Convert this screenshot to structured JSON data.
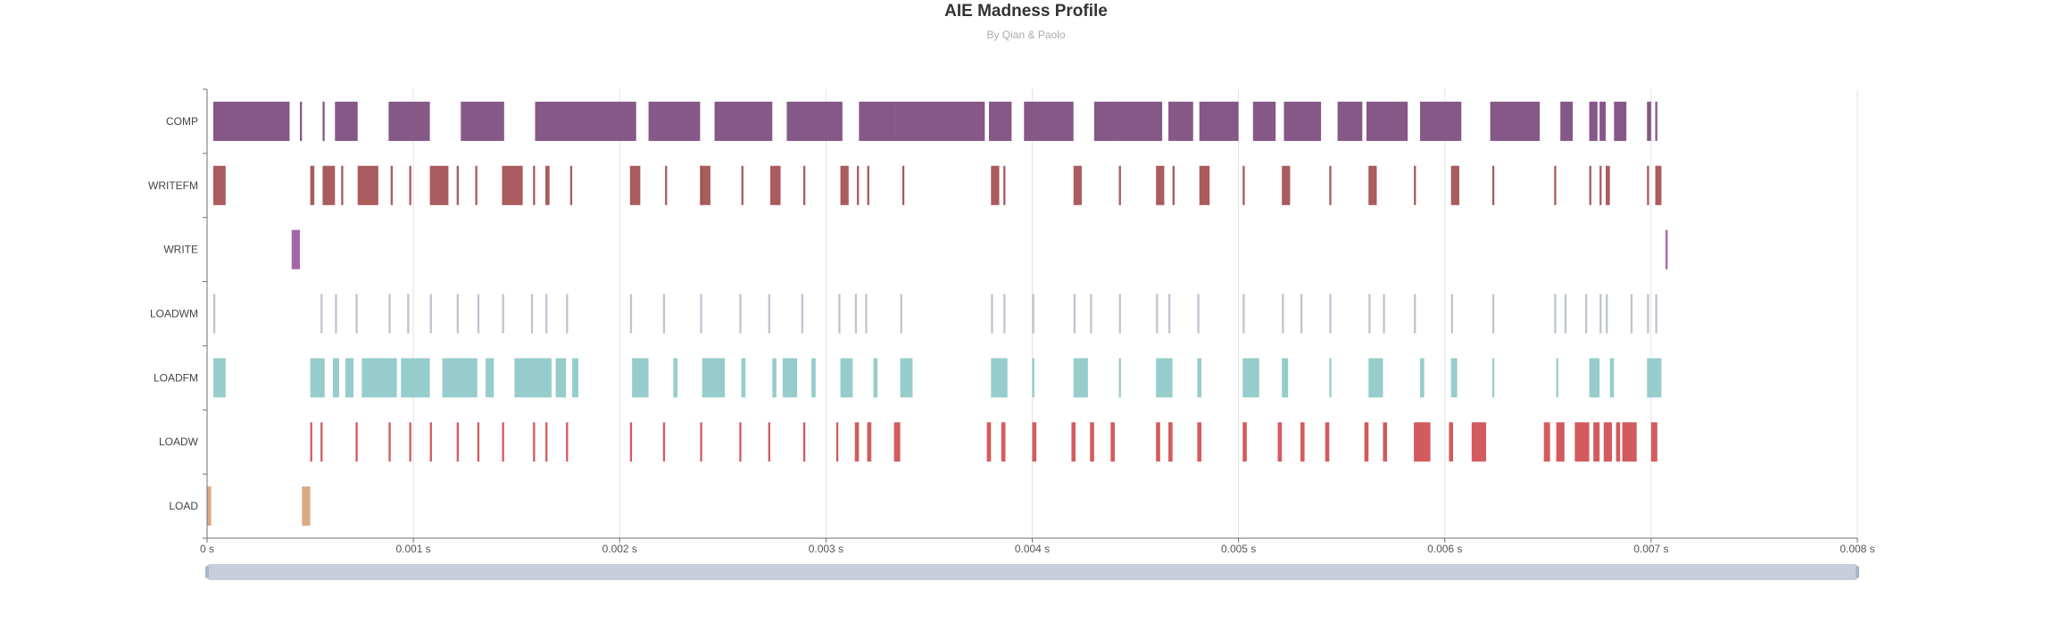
{
  "chart_data": {
    "type": "gantt",
    "title": "AIE Madness Profile",
    "subtitle": "By Qian & Paolo",
    "x_unit": "s",
    "xlim": [
      0,
      0.008
    ],
    "x_ticks": [
      {
        "value": 0,
        "label": "0 s"
      },
      {
        "value": 0.001,
        "label": "0.001 s"
      },
      {
        "value": 0.002,
        "label": "0.002 s"
      },
      {
        "value": 0.003,
        "label": "0.003 s"
      },
      {
        "value": 0.004,
        "label": "0.004 s"
      },
      {
        "value": 0.005,
        "label": "0.005 s"
      },
      {
        "value": 0.006,
        "label": "0.006 s"
      },
      {
        "value": 0.007,
        "label": "0.007 s"
      },
      {
        "value": 0.008,
        "label": "0.008 s"
      }
    ],
    "grid": true,
    "categories": [
      "COMP",
      "WRITEFM",
      "WRITE",
      "LOADWM",
      "LOADFM",
      "LOADW",
      "LOAD"
    ],
    "series": [
      {
        "category": "COMP",
        "color": "#7c4a7e",
        "intervals": [
          [
            3e-05,
            0.0004
          ],
          [
            0.00045,
            0.00046
          ],
          [
            0.00056,
            0.00057
          ],
          [
            0.00062,
            0.00073
          ],
          [
            0.00088,
            0.00108
          ],
          [
            0.00123,
            0.00144
          ],
          [
            0.00159,
            0.00208
          ],
          [
            0.00214,
            0.00239
          ],
          [
            0.00246,
            0.00274
          ],
          [
            0.00281,
            0.00308
          ],
          [
            0.00316,
            0.00334
          ],
          [
            0.00334,
            0.00377
          ],
          [
            0.00379,
            0.0039
          ],
          [
            0.00396,
            0.0042
          ],
          [
            0.0043,
            0.0044
          ],
          [
            0.0044,
            0.00463
          ],
          [
            0.00466,
            0.00478
          ],
          [
            0.00481,
            0.005
          ],
          [
            0.00507,
            0.00518
          ],
          [
            0.00522,
            0.0054
          ],
          [
            0.00548,
            0.0056
          ],
          [
            0.00562,
            0.00582
          ],
          [
            0.00588,
            0.00608
          ],
          [
            0.00622,
            0.00646
          ],
          [
            0.00656,
            0.00662
          ],
          [
            0.0067,
            0.00674
          ],
          [
            0.00675,
            0.00678
          ],
          [
            0.00682,
            0.00688
          ],
          [
            0.00698,
            0.007
          ],
          [
            0.00702,
            0.00703
          ]
        ]
      },
      {
        "category": "WRITEFM",
        "color": "#a34d4f",
        "intervals": [
          [
            3e-05,
            9e-05
          ],
          [
            0.0005,
            0.00052
          ],
          [
            0.00056,
            0.00062
          ],
          [
            0.00065,
            0.00066
          ],
          [
            0.00073,
            0.00083
          ],
          [
            0.00089,
            0.0009
          ],
          [
            0.00098,
            0.00099
          ],
          [
            0.00108,
            0.00117
          ],
          [
            0.00121,
            0.00122
          ],
          [
            0.0013,
            0.00131
          ],
          [
            0.00143,
            0.00153
          ],
          [
            0.00158,
            0.00159
          ],
          [
            0.00164,
            0.00166
          ],
          [
            0.00176,
            0.00177
          ],
          [
            0.00205,
            0.0021
          ],
          [
            0.00222,
            0.00223
          ],
          [
            0.00239,
            0.0024
          ],
          [
            0.00239,
            0.00244
          ],
          [
            0.00259,
            0.0026
          ],
          [
            0.00273,
            0.00278
          ],
          [
            0.00289,
            0.0029
          ],
          [
            0.00307,
            0.00311
          ],
          [
            0.00315,
            0.00316
          ],
          [
            0.0032,
            0.00321
          ],
          [
            0.00337,
            0.00338
          ],
          [
            0.0038,
            0.00384
          ],
          [
            0.00386,
            0.00387
          ],
          [
            0.0042,
            0.00424
          ],
          [
            0.00442,
            0.00443
          ],
          [
            0.0046,
            0.00464
          ],
          [
            0.00468,
            0.00469
          ],
          [
            0.00481,
            0.00486
          ],
          [
            0.00502,
            0.00503
          ],
          [
            0.00521,
            0.00525
          ],
          [
            0.00544,
            0.00545
          ],
          [
            0.00563,
            0.00567
          ],
          [
            0.00585,
            0.00586
          ],
          [
            0.00603,
            0.00607
          ],
          [
            0.00623,
            0.00624
          ],
          [
            0.00653,
            0.00654
          ],
          [
            0.0067,
            0.00671
          ],
          [
            0.00675,
            0.00676
          ],
          [
            0.00678,
            0.0068
          ],
          [
            0.00698,
            0.00699
          ],
          [
            0.00702,
            0.00705
          ]
        ]
      },
      {
        "category": "WRITE",
        "color": "#9b5aa1",
        "intervals": [
          [
            0.00041,
            0.00045
          ],
          [
            0.00707,
            0.00708
          ]
        ]
      },
      {
        "category": "LOADWM",
        "color": "#b8bfca",
        "intervals": [
          [
            3e-05,
            4e-05
          ],
          [
            0.00055,
            0.00056
          ],
          [
            0.00062,
            0.00063
          ],
          [
            0.00072,
            0.00073
          ],
          [
            0.00088,
            0.00089
          ],
          [
            0.00097,
            0.00098
          ],
          [
            0.00108,
            0.00109
          ],
          [
            0.00121,
            0.00122
          ],
          [
            0.00131,
            0.00132
          ],
          [
            0.00143,
            0.00144
          ],
          [
            0.00157,
            0.00158
          ],
          [
            0.00164,
            0.00165
          ],
          [
            0.00174,
            0.00175
          ],
          [
            0.00205,
            0.00206
          ],
          [
            0.00221,
            0.00222
          ],
          [
            0.00239,
            0.0024
          ],
          [
            0.00258,
            0.00259
          ],
          [
            0.00272,
            0.00273
          ],
          [
            0.00288,
            0.00289
          ],
          [
            0.00306,
            0.00307
          ],
          [
            0.00314,
            0.00315
          ],
          [
            0.00319,
            0.0032
          ],
          [
            0.00336,
            0.00337
          ],
          [
            0.0038,
            0.00381
          ],
          [
            0.00386,
            0.00387
          ],
          [
            0.004,
            0.00401
          ],
          [
            0.0042,
            0.00421
          ],
          [
            0.00428,
            0.00429
          ],
          [
            0.00442,
            0.00443
          ],
          [
            0.0046,
            0.00461
          ],
          [
            0.00466,
            0.00467
          ],
          [
            0.0048,
            0.00481
          ],
          [
            0.00502,
            0.00503
          ],
          [
            0.00521,
            0.00522
          ],
          [
            0.0053,
            0.00531
          ],
          [
            0.00544,
            0.00545
          ],
          [
            0.00563,
            0.00564
          ],
          [
            0.0057,
            0.00571
          ],
          [
            0.00585,
            0.00586
          ],
          [
            0.00603,
            0.00604
          ],
          [
            0.00623,
            0.00624
          ],
          [
            0.00653,
            0.00654
          ],
          [
            0.00658,
            0.00659
          ],
          [
            0.00668,
            0.00669
          ],
          [
            0.00675,
            0.00676
          ],
          [
            0.00678,
            0.00679
          ],
          [
            0.0069,
            0.00691
          ],
          [
            0.00698,
            0.00699
          ],
          [
            0.00702,
            0.00703
          ]
        ]
      },
      {
        "category": "LOADFM",
        "color": "#8dc9c8",
        "intervals": [
          [
            3e-05,
            9e-05
          ],
          [
            0.0005,
            0.00057
          ],
          [
            0.00061,
            0.00064
          ],
          [
            0.00067,
            0.00071
          ],
          [
            0.00075,
            0.00092
          ],
          [
            0.00094,
            0.00108
          ],
          [
            0.00114,
            0.00131
          ],
          [
            0.00135,
            0.00139
          ],
          [
            0.00149,
            0.00167
          ],
          [
            0.00169,
            0.00174
          ],
          [
            0.00177,
            0.0018
          ],
          [
            0.00206,
            0.00214
          ],
          [
            0.00226,
            0.00228
          ],
          [
            0.0024,
            0.00251
          ],
          [
            0.00259,
            0.00261
          ],
          [
            0.00274,
            0.00276
          ],
          [
            0.00279,
            0.00286
          ],
          [
            0.00293,
            0.00295
          ],
          [
            0.00307,
            0.00313
          ],
          [
            0.00323,
            0.00325
          ],
          [
            0.00336,
            0.00342
          ],
          [
            0.0038,
            0.00388
          ],
          [
            0.004,
            0.00401
          ],
          [
            0.0042,
            0.00427
          ],
          [
            0.00442,
            0.00443
          ],
          [
            0.0046,
            0.00468
          ],
          [
            0.0048,
            0.00482
          ],
          [
            0.00502,
            0.0051
          ],
          [
            0.00521,
            0.00524
          ],
          [
            0.00544,
            0.00545
          ],
          [
            0.00563,
            0.0057
          ],
          [
            0.00588,
            0.0059
          ],
          [
            0.00603,
            0.00606
          ],
          [
            0.00623,
            0.00624
          ],
          [
            0.00654,
            0.00655
          ],
          [
            0.0067,
            0.00675
          ],
          [
            0.0068,
            0.00682
          ],
          [
            0.00698,
            0.00705
          ]
        ]
      },
      {
        "category": "LOADW",
        "color": "#cf4d50",
        "intervals": [
          [
            0.0005,
            0.00051
          ],
          [
            0.00055,
            0.00056
          ],
          [
            0.00072,
            0.00073
          ],
          [
            0.00088,
            0.00089
          ],
          [
            0.00098,
            0.00099
          ],
          [
            0.00108,
            0.00109
          ],
          [
            0.00121,
            0.00122
          ],
          [
            0.00131,
            0.00132
          ],
          [
            0.00143,
            0.00144
          ],
          [
            0.00158,
            0.00159
          ],
          [
            0.00164,
            0.00165
          ],
          [
            0.00174,
            0.00175
          ],
          [
            0.00205,
            0.00206
          ],
          [
            0.00221,
            0.00222
          ],
          [
            0.00239,
            0.0024
          ],
          [
            0.00258,
            0.00259
          ],
          [
            0.00272,
            0.00273
          ],
          [
            0.00289,
            0.0029
          ],
          [
            0.00305,
            0.00306
          ],
          [
            0.00314,
            0.00316
          ],
          [
            0.0032,
            0.00322
          ],
          [
            0.00333,
            0.00336
          ],
          [
            0.00378,
            0.0038
          ],
          [
            0.00385,
            0.00387
          ],
          [
            0.004,
            0.00402
          ],
          [
            0.00419,
            0.00421
          ],
          [
            0.00428,
            0.0043
          ],
          [
            0.00438,
            0.0044
          ],
          [
            0.0046,
            0.00462
          ],
          [
            0.00466,
            0.00468
          ],
          [
            0.0048,
            0.00482
          ],
          [
            0.00502,
            0.00504
          ],
          [
            0.00519,
            0.00521
          ],
          [
            0.0053,
            0.00532
          ],
          [
            0.00542,
            0.00544
          ],
          [
            0.00561,
            0.00563
          ],
          [
            0.0057,
            0.00572
          ],
          [
            0.00585,
            0.00593
          ],
          [
            0.00602,
            0.00604
          ],
          [
            0.00613,
            0.0062
          ],
          [
            0.00648,
            0.00651
          ],
          [
            0.00654,
            0.00658
          ],
          [
            0.00663,
            0.0067
          ],
          [
            0.00672,
            0.00675
          ],
          [
            0.00677,
            0.00681
          ],
          [
            0.00683,
            0.00685
          ],
          [
            0.00686,
            0.00693
          ],
          [
            0.007,
            0.00703
          ]
        ]
      },
      {
        "category": "LOAD",
        "color": "#d9a27b",
        "intervals": [
          [
            0.0,
            2e-05
          ],
          [
            0.00046,
            0.0005
          ]
        ]
      }
    ]
  },
  "zoom_slider": {
    "start": 0,
    "end": 1,
    "color": "#c8ced9"
  }
}
